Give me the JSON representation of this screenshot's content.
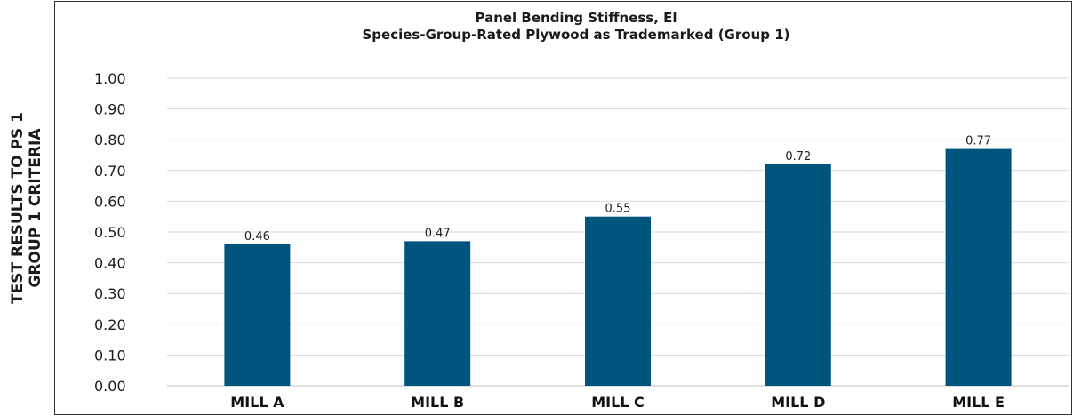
{
  "chart_data": {
    "type": "bar",
    "title_lines": [
      "Panel Bending Stiffness, El",
      "Species-Group-Rated Plywood as Trademarked (Group 1)"
    ],
    "ylabel_lines": [
      "TEST RESULTS TO PS 1",
      "GROUP 1 CRITERIA"
    ],
    "xlabel": "",
    "categories": [
      "MILL A",
      "MILL B",
      "MILL C",
      "MILL D",
      "MILL E"
    ],
    "values": [
      0.46,
      0.47,
      0.55,
      0.72,
      0.77
    ],
    "data_labels": [
      "0.46",
      "0.47",
      "0.55",
      "0.72",
      "0.77"
    ],
    "ylim": [
      0,
      1
    ],
    "yticks": [
      "0.00",
      "0.10",
      "0.20",
      "0.30",
      "0.40",
      "0.50",
      "0.60",
      "0.70",
      "0.80",
      "0.90",
      "1.00"
    ],
    "grid": true,
    "legend": "none",
    "bar_color": "#00557f"
  }
}
